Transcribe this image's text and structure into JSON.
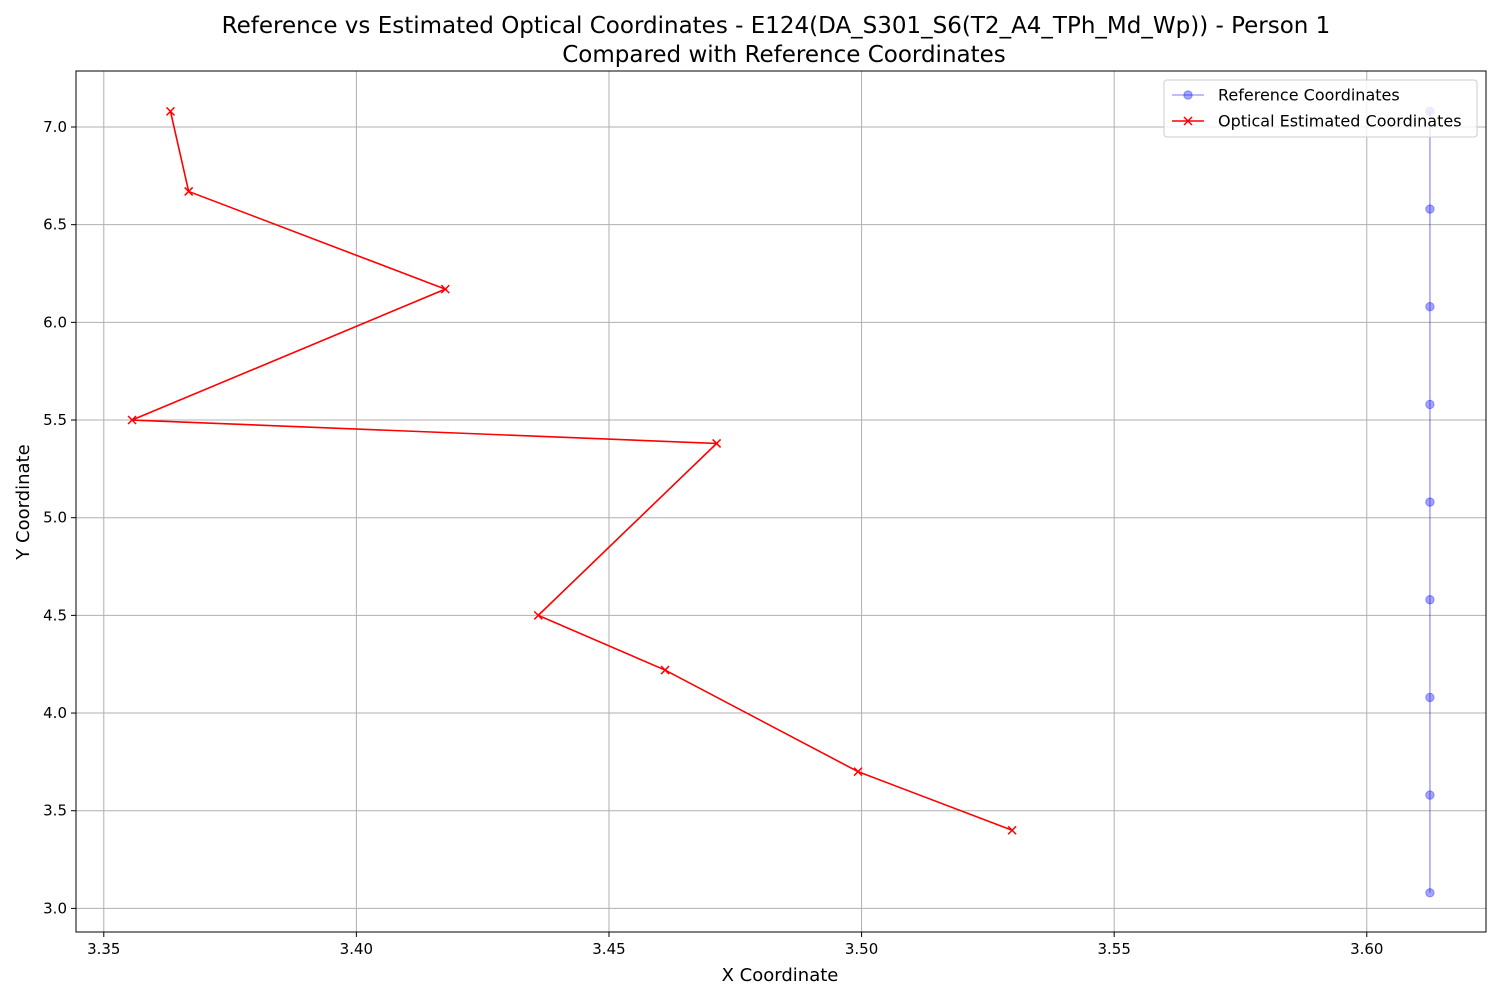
{
  "chart_data": {
    "type": "line",
    "title": "Reference vs Estimated Optical Coordinates - E124(DA_S301_S6(T2_A4_TPh_Md_Wp)) - Person 1",
    "subtitle": "Compared with Reference Coordinates",
    "xlabel": "X Coordinate",
    "ylabel": "Y Coordinate",
    "xlim": [
      3.3445,
      3.6236
    ],
    "ylim": [
      2.8792,
      7.2866
    ],
    "xticks": [
      {
        "value": 3.35,
        "label": "3.35"
      },
      {
        "value": 3.4,
        "label": "3.40"
      },
      {
        "value": 3.45,
        "label": "3.45"
      },
      {
        "value": 3.5,
        "label": "3.50"
      },
      {
        "value": 3.55,
        "label": "3.55"
      },
      {
        "value": 3.6,
        "label": "3.60"
      }
    ],
    "yticks": [
      {
        "value": 3.0,
        "label": "3.0"
      },
      {
        "value": 3.5,
        "label": "3.5"
      },
      {
        "value": 4.0,
        "label": "4.0"
      },
      {
        "value": 4.5,
        "label": "4.5"
      },
      {
        "value": 5.0,
        "label": "5.0"
      },
      {
        "value": 5.5,
        "label": "5.5"
      },
      {
        "value": 6.0,
        "label": "6.0"
      },
      {
        "value": 6.5,
        "label": "6.5"
      },
      {
        "value": 7.0,
        "label": "7.0"
      }
    ],
    "grid": true,
    "legend_position": "top-right",
    "series": [
      {
        "name": "Reference Coordinates",
        "color": "#0000ff",
        "marker": "circle",
        "alpha": 0.35,
        "x": [
          3.6125,
          3.6125,
          3.6125,
          3.6125,
          3.6125,
          3.6125,
          3.6125,
          3.6125,
          3.6125
        ],
        "y": [
          3.08,
          3.58,
          4.08,
          4.58,
          5.08,
          5.58,
          6.08,
          6.58,
          7.08
        ]
      },
      {
        "name": "Optical Estimated Coordinates",
        "color": "#ff0000",
        "marker": "x",
        "alpha": 1,
        "x": [
          3.5298,
          3.4993,
          3.4611,
          3.436,
          3.4713,
          3.3556,
          3.4176,
          3.3668,
          3.3632
        ],
        "y": [
          3.4,
          3.7,
          4.22,
          4.5,
          5.38,
          5.5,
          6.17,
          6.67,
          7.08
        ]
      }
    ]
  }
}
